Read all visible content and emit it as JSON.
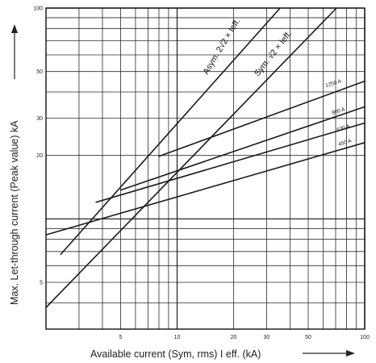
{
  "chart_data": {
    "type": "line",
    "title": "",
    "xlabel": "Available current (Sym, rms) I eff. (kA)",
    "ylabel": "Max. Let-through current (Peak value) kA",
    "xscale": "log",
    "yscale": "log",
    "xlim": [
      2,
      100
    ],
    "ylim": [
      3,
      100
    ],
    "grid": true,
    "x_tick_labels": [
      "5",
      "10",
      "20",
      "30",
      "50",
      "100"
    ],
    "y_tick_labels": [
      "5",
      "20",
      "30",
      "50",
      "100"
    ],
    "series": [
      {
        "name": "Asym. 2√2 × Ieff.",
        "x": [
          2.4,
          35.4
        ],
        "y": [
          6.8,
          100
        ]
      },
      {
        "name": "Sym. √2 × Ieff.",
        "x": [
          2.0,
          70.7
        ],
        "y": [
          3.8,
          100
        ]
      },
      {
        "name": "1250 A",
        "x": [
          8.0,
          100
        ],
        "y": [
          19.8,
          45
        ]
      },
      {
        "name": "900 A",
        "x": [
          5.0,
          100
        ],
        "y": [
          13.7,
          34
        ]
      },
      {
        "name": "630 A",
        "x": [
          3.7,
          100
        ],
        "y": [
          12.0,
          28.5
        ]
      },
      {
        "name": "450 A",
        "x": [
          2.0,
          100
        ],
        "y": [
          8.4,
          23
        ]
      }
    ]
  },
  "labels": {
    "asym": "Asym. 2√2 × Ieff.",
    "sym": "Sym. √2 × Ieff.",
    "c1250": "1250 A",
    "c900": "900 A",
    "c630": "630 A",
    "c450": "450 A"
  },
  "colors": {
    "line": "#1a1a1a",
    "grid": "#2a2a2a",
    "text": "#222222"
  }
}
